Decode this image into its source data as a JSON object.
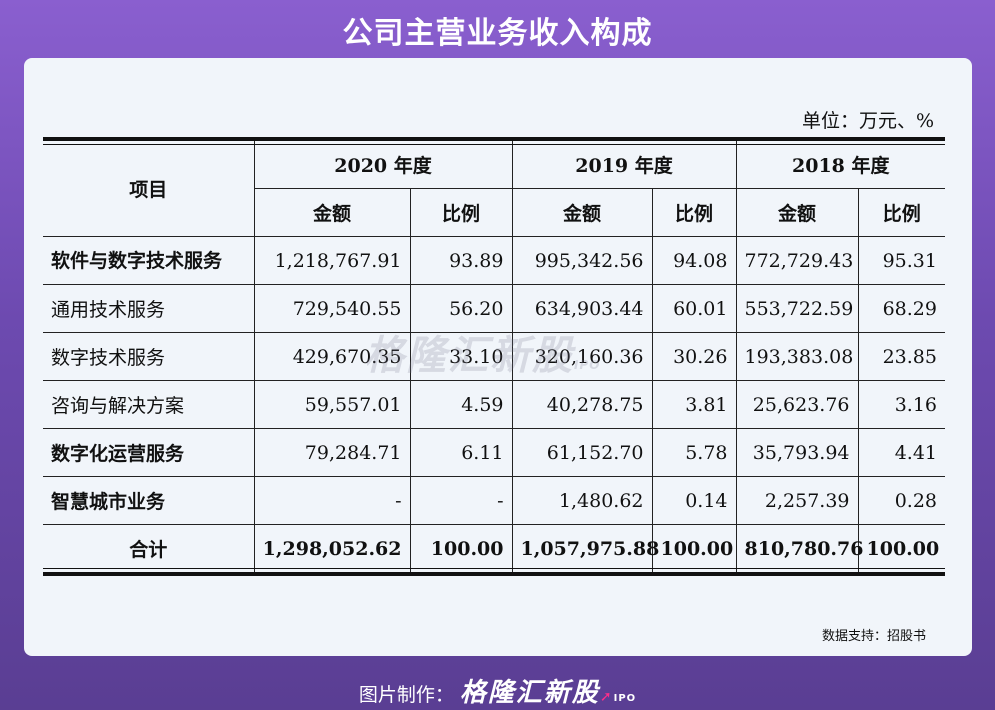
{
  "title": "公司主营业务收入构成",
  "unit": "单位：万元、%",
  "header": {
    "item": "项目",
    "years": [
      "2020 年度",
      "2019 年度",
      "2018 年度"
    ],
    "amount": "金额",
    "ratio": "比例"
  },
  "rows": [
    {
      "name": "软件与数字技术服务",
      "values": [
        "1,218,767.91",
        "93.89",
        "995,342.56",
        "94.08",
        "772,729.43",
        "95.31"
      ]
    },
    {
      "name": "通用技术服务",
      "values": [
        "729,540.55",
        "56.20",
        "634,903.44",
        "60.01",
        "553,722.59",
        "68.29"
      ]
    },
    {
      "name": "数字技术服务",
      "values": [
        "429,670.35",
        "33.10",
        "320,160.36",
        "30.26",
        "193,383.08",
        "23.85"
      ]
    },
    {
      "name": "咨询与解决方案",
      "values": [
        "59,557.01",
        "4.59",
        "40,278.75",
        "3.81",
        "25,623.76",
        "3.16"
      ]
    },
    {
      "name": "数字化运营服务",
      "values": [
        "79,284.71",
        "6.11",
        "61,152.70",
        "5.78",
        "35,793.94",
        "4.41"
      ]
    },
    {
      "name": "智慧城市业务",
      "values": [
        "-",
        "-",
        "1,480.62",
        "0.14",
        "2,257.39",
        "0.28"
      ]
    },
    {
      "name": "合计",
      "values": [
        "1,298,052.62",
        "100.00",
        "1,057,975.88",
        "100.00",
        "810,780.76",
        "100.00"
      ]
    }
  ],
  "watermark": {
    "text": "格隆汇新股",
    "sub": "IPO"
  },
  "source": "数据支持：招股书",
  "footer": {
    "label": "图片制作：",
    "logo": "格隆汇新股",
    "logo_sub": "IPO"
  }
}
